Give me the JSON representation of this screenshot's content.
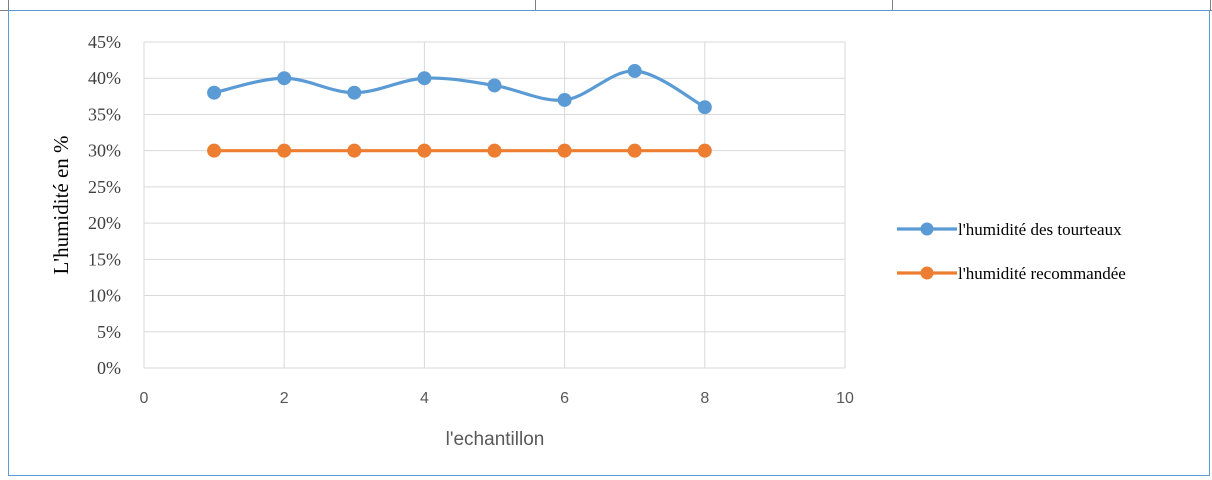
{
  "chart_data": {
    "type": "line",
    "xlabel": "l'echantillon",
    "ylabel": "L'humidité en %",
    "xlim": [
      0,
      10
    ],
    "ylim": [
      0,
      45
    ],
    "x_ticks": [
      "0",
      "2",
      "4",
      "6",
      "8",
      "10"
    ],
    "y_ticks": [
      "0%",
      "5%",
      "10%",
      "15%",
      "20%",
      "25%",
      "30%",
      "35%",
      "40%",
      "45%"
    ],
    "grid": true,
    "legend_position": "right",
    "series": [
      {
        "name": "l'humidité des tourteaux",
        "color": "#5b9bd5",
        "smooth": true,
        "x": [
          1,
          2,
          3,
          4,
          5,
          6,
          7,
          8
        ],
        "y": [
          38,
          40,
          38,
          40,
          39,
          37,
          41,
          36
        ]
      },
      {
        "name": "l'humidité recommandée",
        "color": "#ed7d31",
        "smooth": false,
        "x": [
          1,
          2,
          3,
          4,
          5,
          6,
          7,
          8
        ],
        "y": [
          30,
          30,
          30,
          30,
          30,
          30,
          30,
          30
        ]
      }
    ]
  }
}
